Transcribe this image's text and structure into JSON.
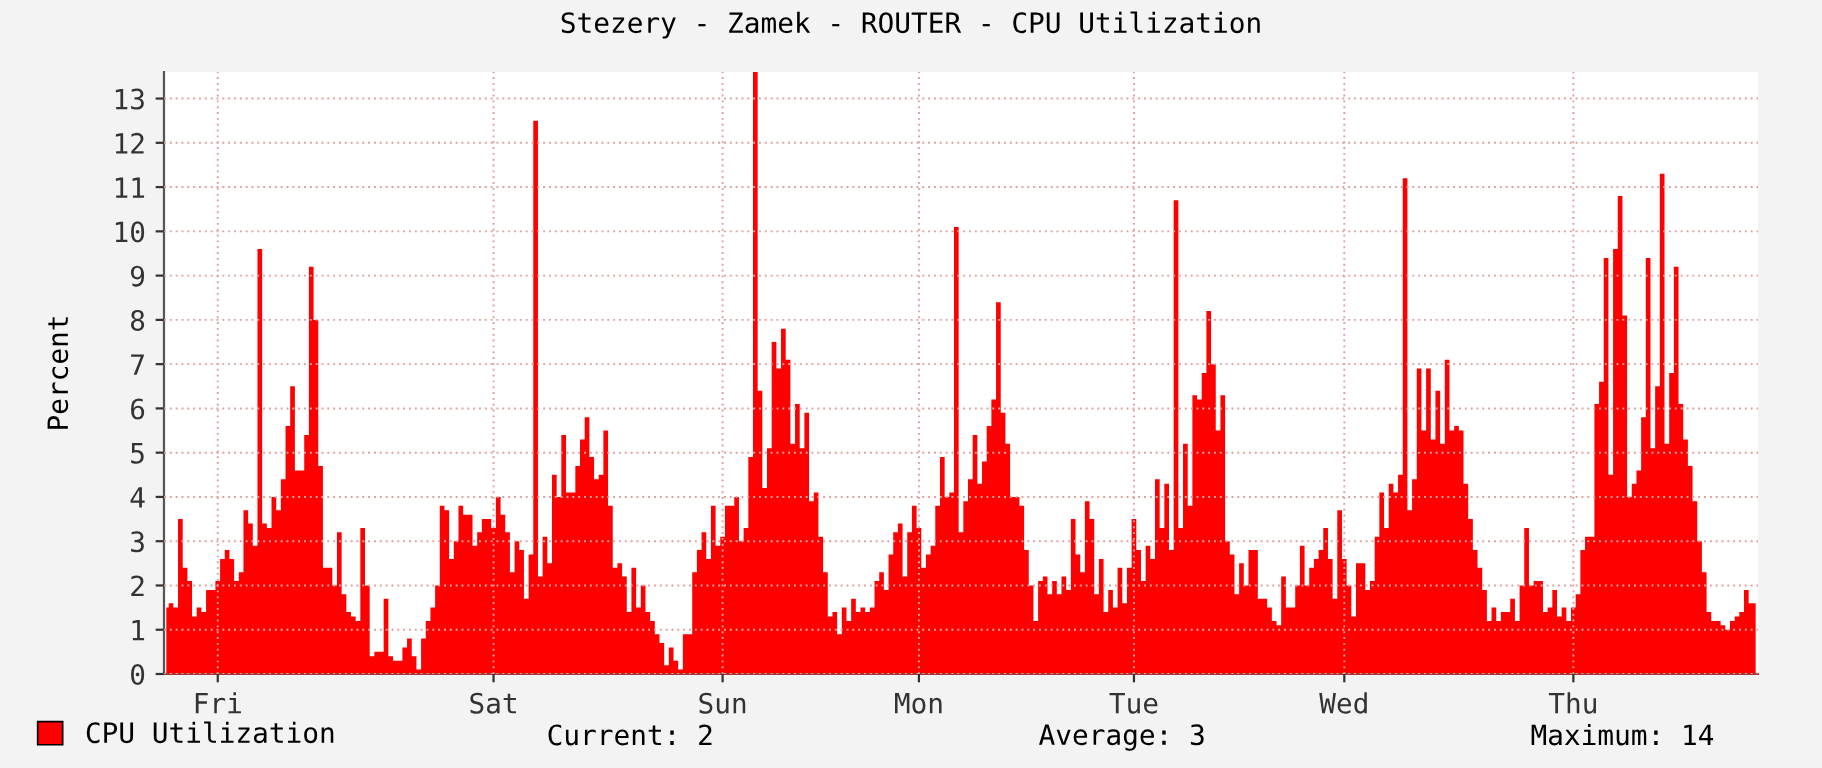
{
  "chart_data": {
    "type": "area",
    "title": "Stezery - Zamek - ROUTER - CPU Utilization",
    "ylabel": "Percent",
    "ylim": [
      0,
      13.6
    ],
    "yticks": [
      0,
      1,
      2,
      3,
      4,
      5,
      6,
      7,
      8,
      9,
      10,
      11,
      12,
      13
    ],
    "grid": true,
    "legend": "bottom",
    "annotations": [
      "Current: 2",
      "Average: 3",
      "Maximum: 14"
    ],
    "categories": [
      null,
      null,
      null,
      null,
      null,
      null,
      null,
      null,
      null,
      null,
      null,
      "Fri",
      null,
      null,
      null,
      null,
      null,
      null,
      null,
      null,
      null,
      null,
      null,
      null,
      null,
      null,
      null,
      null,
      null,
      null,
      null,
      null,
      null,
      null,
      null,
      null,
      null,
      null,
      null,
      null,
      null,
      null,
      null,
      null,
      null,
      null,
      null,
      null,
      null,
      null,
      null,
      null,
      null,
      null,
      null,
      null,
      null,
      null,
      null,
      null,
      null,
      null,
      null,
      null,
      null,
      null,
      null,
      null,
      null,
      null,
      "Sat",
      null,
      null,
      null,
      null,
      null,
      null,
      null,
      null,
      null,
      null,
      null,
      null,
      null,
      null,
      null,
      null,
      null,
      null,
      null,
      null,
      null,
      null,
      null,
      null,
      null,
      null,
      null,
      null,
      null,
      null,
      null,
      null,
      null,
      null,
      null,
      null,
      null,
      null,
      null,
      null,
      null,
      null,
      null,
      null,
      null,
      null,
      null,
      null,
      "Sun",
      null,
      null,
      null,
      null,
      null,
      null,
      null,
      null,
      null,
      null,
      null,
      null,
      null,
      null,
      null,
      null,
      null,
      null,
      null,
      null,
      null,
      null,
      null,
      null,
      null,
      null,
      null,
      null,
      null,
      null,
      null,
      null,
      null,
      null,
      null,
      null,
      null,
      null,
      null,
      null,
      null,
      "Mon",
      null,
      null,
      null,
      null,
      null,
      null,
      null,
      null,
      null,
      null,
      null,
      null,
      null,
      null,
      null,
      null,
      null,
      null,
      null,
      null,
      null,
      null,
      null,
      null,
      null,
      null,
      null,
      null,
      null,
      null,
      null,
      null,
      null,
      null,
      null,
      null,
      null,
      null,
      null,
      null,
      null,
      null,
      null,
      null,
      null,
      "Tue",
      null,
      null,
      null,
      null,
      null,
      null,
      null,
      null,
      null,
      null,
      null,
      null,
      null,
      null,
      null,
      null,
      null,
      null,
      null,
      null,
      null,
      null,
      null,
      null,
      null,
      null,
      null,
      null,
      null,
      null,
      null,
      null,
      null,
      null,
      null,
      null,
      null,
      null,
      null,
      null,
      null,
      null,
      null,
      null,
      "Wed",
      null,
      null,
      null,
      null,
      null,
      null,
      null,
      null,
      null,
      null,
      null,
      null,
      null,
      null,
      null,
      null,
      null,
      null,
      null,
      null,
      null,
      null,
      null,
      null,
      null,
      null,
      null,
      null,
      null,
      null,
      null,
      null,
      null,
      null,
      null,
      null,
      null,
      null,
      null,
      null,
      null,
      null,
      null,
      null,
      null,
      null,
      null,
      null,
      "Thu",
      null,
      null,
      null,
      null,
      null,
      null,
      null,
      null,
      null,
      null,
      null,
      null,
      null,
      null,
      null,
      null,
      null,
      null,
      null,
      null,
      null,
      null,
      null,
      null,
      null,
      null,
      null,
      null,
      null,
      null,
      null,
      null,
      null,
      null,
      null,
      null,
      null,
      null,
      null
    ],
    "series": [
      {
        "name": "CPU Utilization",
        "color": "#ff0000",
        "values": [
          1.5,
          1.6,
          1.5,
          3.5,
          2.4,
          2.1,
          1.3,
          1.5,
          1.4,
          1.9,
          1.9,
          2.1,
          2.6,
          2.8,
          2.6,
          2.1,
          2.3,
          3.7,
          3.4,
          2.9,
          9.6,
          3.4,
          3.3,
          4.0,
          3.7,
          4.4,
          5.6,
          6.5,
          4.6,
          4.6,
          5.4,
          9.2,
          8.0,
          4.7,
          2.4,
          2.4,
          2.0,
          3.2,
          1.8,
          1.4,
          1.3,
          1.2,
          3.3,
          2.0,
          0.4,
          0.5,
          0.5,
          1.7,
          0.4,
          0.3,
          0.3,
          0.6,
          0.8,
          0.4,
          0.1,
          0.8,
          1.2,
          1.5,
          2.0,
          3.8,
          3.7,
          2.6,
          3.0,
          3.8,
          3.6,
          3.6,
          2.9,
          3.2,
          3.5,
          3.5,
          3.3,
          4.0,
          3.6,
          3.2,
          2.3,
          3.0,
          2.8,
          1.7,
          2.7,
          12.5,
          2.2,
          3.1,
          2.5,
          4.5,
          4.0,
          5.4,
          4.1,
          4.1,
          4.7,
          5.3,
          5.8,
          4.9,
          4.4,
          4.5,
          5.5,
          3.8,
          2.4,
          2.5,
          2.2,
          1.4,
          2.4,
          1.5,
          2.0,
          1.4,
          1.2,
          0.9,
          0.7,
          0.2,
          0.6,
          0.3,
          0.1,
          0.9,
          0.9,
          2.3,
          2.8,
          3.2,
          2.6,
          3.8,
          2.9,
          3.1,
          3.8,
          3.8,
          4.0,
          3.0,
          3.3,
          4.9,
          13.6,
          6.4,
          4.2,
          5.1,
          7.5,
          6.9,
          7.8,
          7.1,
          5.2,
          6.1,
          5.1,
          5.9,
          3.9,
          4.1,
          3.1,
          2.3,
          1.3,
          1.4,
          0.9,
          1.5,
          1.2,
          1.7,
          1.4,
          1.5,
          1.4,
          1.5,
          2.1,
          2.3,
          1.9,
          2.7,
          3.2,
          3.4,
          2.2,
          3.2,
          3.8,
          3.3,
          2.4,
          2.7,
          2.9,
          3.8,
          4.9,
          4.0,
          4.1,
          10.1,
          3.2,
          3.9,
          4.4,
          5.4,
          4.3,
          4.8,
          5.6,
          6.2,
          8.4,
          5.9,
          5.2,
          4.0,
          4.0,
          3.8,
          2.8,
          2.0,
          1.2,
          2.1,
          2.2,
          1.8,
          2.1,
          1.8,
          2.2,
          1.9,
          3.5,
          2.7,
          2.3,
          3.9,
          3.5,
          1.8,
          2.6,
          1.4,
          1.9,
          1.5,
          2.4,
          1.6,
          2.4,
          3.5,
          2.8,
          2.1,
          2.9,
          2.6,
          4.4,
          3.3,
          4.3,
          2.8,
          10.7,
          3.3,
          5.2,
          3.8,
          6.3,
          6.2,
          6.8,
          8.2,
          7.0,
          5.5,
          6.3,
          3.0,
          2.7,
          1.8,
          2.5,
          2.0,
          2.8,
          2.8,
          1.7,
          1.7,
          1.5,
          1.2,
          1.1,
          2.2,
          1.5,
          1.5,
          2.0,
          2.9,
          2.0,
          2.4,
          2.6,
          2.8,
          3.3,
          2.6,
          1.7,
          3.7,
          2.6,
          2.0,
          1.3,
          2.5,
          2.5,
          1.9,
          2.1,
          3.1,
          4.1,
          3.3,
          4.3,
          4.1,
          4.5,
          11.2,
          3.7,
          4.4,
          6.9,
          5.5,
          6.9,
          5.3,
          6.4,
          5.2,
          7.1,
          5.5,
          5.6,
          5.5,
          4.3,
          3.5,
          2.8,
          2.4,
          1.9,
          1.2,
          1.5,
          1.2,
          1.4,
          1.4,
          1.7,
          1.2,
          2.0,
          3.3,
          2.0,
          2.1,
          2.1,
          1.4,
          1.5,
          1.9,
          1.3,
          1.5,
          1.2,
          1.5,
          1.8,
          2.8,
          3.1,
          3.1,
          6.1,
          6.6,
          9.4,
          4.5,
          9.6,
          10.8,
          8.1,
          4.0,
          4.3,
          4.6,
          5.8,
          9.4,
          5.1,
          6.5,
          11.3,
          5.2,
          6.8,
          9.2,
          6.1,
          5.3,
          4.7,
          3.9,
          3.0,
          2.3,
          1.4,
          1.2,
          1.2,
          1.1,
          1.0,
          1.2,
          1.3,
          1.4,
          1.9,
          1.6,
          1.6
        ]
      }
    ]
  }
}
